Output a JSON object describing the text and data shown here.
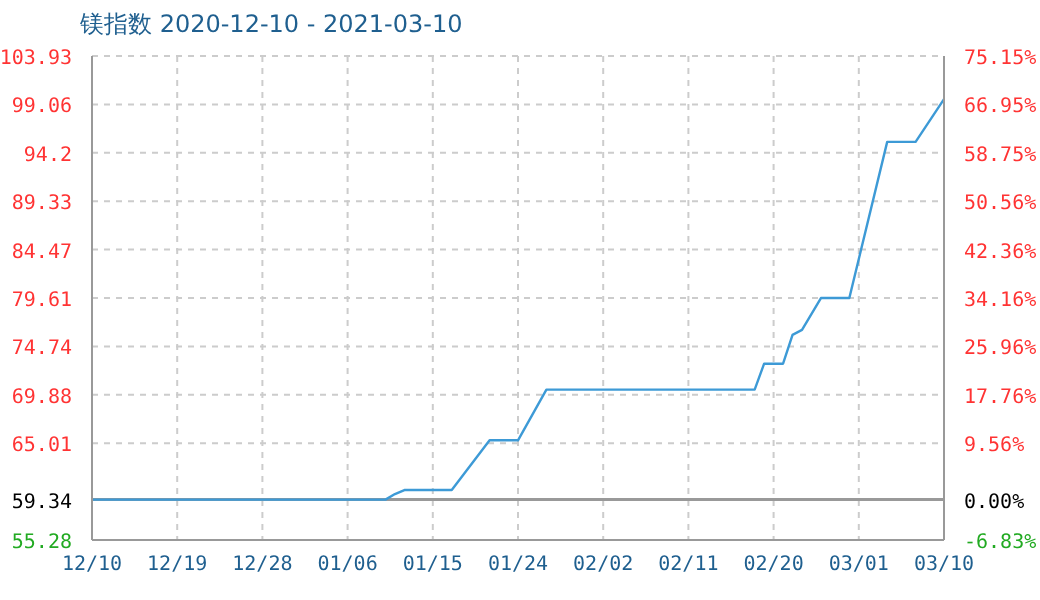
{
  "chart_data": {
    "type": "line",
    "title": "镁指数 2020-12-10 - 2021-03-10",
    "x": [
      "2020-12-10",
      "2021-01-10",
      "2021-01-11",
      "2021-01-12",
      "2021-01-17",
      "2021-01-21",
      "2021-01-24",
      "2021-01-27",
      "2021-02-18",
      "2021-02-19",
      "2021-02-21",
      "2021-02-22",
      "2021-02-23",
      "2021-02-25",
      "2021-02-28",
      "2021-03-04",
      "2021-03-07",
      "2021-03-10"
    ],
    "series": [
      {
        "color": "#3d9ad6",
        "values": [
          59.34,
          59.34,
          59.9,
          60.3,
          60.3,
          65.3,
          65.3,
          70.4,
          70.4,
          73.0,
          73.0,
          75.9,
          76.4,
          79.6,
          79.6,
          95.3,
          95.3,
          99.6
        ]
      }
    ],
    "xlim": [
      "2020-12-10",
      "2021-03-10"
    ],
    "xticks": [
      {
        "value": "2020-12-10",
        "label": "12/10"
      },
      {
        "value": "2020-12-19",
        "label": "12/19"
      },
      {
        "value": "2020-12-28",
        "label": "12/28"
      },
      {
        "value": "2021-01-06",
        "label": "01/06"
      },
      {
        "value": "2021-01-15",
        "label": "01/15"
      },
      {
        "value": "2021-01-24",
        "label": "01/24"
      },
      {
        "value": "2021-02-02",
        "label": "02/02"
      },
      {
        "value": "2021-02-11",
        "label": "02/11"
      },
      {
        "value": "2021-02-20",
        "label": "02/20"
      },
      {
        "value": "2021-03-01",
        "label": "03/01"
      },
      {
        "value": "2021-03-10",
        "label": "03/10"
      }
    ],
    "ylim": [
      55.28,
      103.93
    ],
    "yticks": [
      55.28,
      59.34,
      65.01,
      69.88,
      74.74,
      79.61,
      84.47,
      89.33,
      94.2,
      99.06,
      103.93
    ],
    "y2lim": [
      -6.83,
      75.15
    ],
    "y2ticks": [
      {
        "value": -6.83,
        "label": "-6.83%"
      },
      {
        "value": 0,
        "label": "0.00%"
      },
      {
        "value": 9.56,
        "label": "9.56%"
      },
      {
        "value": 17.76,
        "label": "17.76%"
      },
      {
        "value": 25.96,
        "label": "25.96%"
      },
      {
        "value": 34.16,
        "label": "34.16%"
      },
      {
        "value": 42.36,
        "label": "42.36%"
      },
      {
        "value": 50.56,
        "label": "50.56%"
      },
      {
        "value": 58.75,
        "label": "58.75%"
      },
      {
        "value": 66.95,
        "label": "66.95%"
      },
      {
        "value": 75.15,
        "label": "75.15%"
      }
    ],
    "ref_lines": [
      {
        "axis": "y",
        "value": 59.34,
        "color": "#999999"
      }
    ],
    "grid": true,
    "marker": "none",
    "line_style": "solid"
  }
}
